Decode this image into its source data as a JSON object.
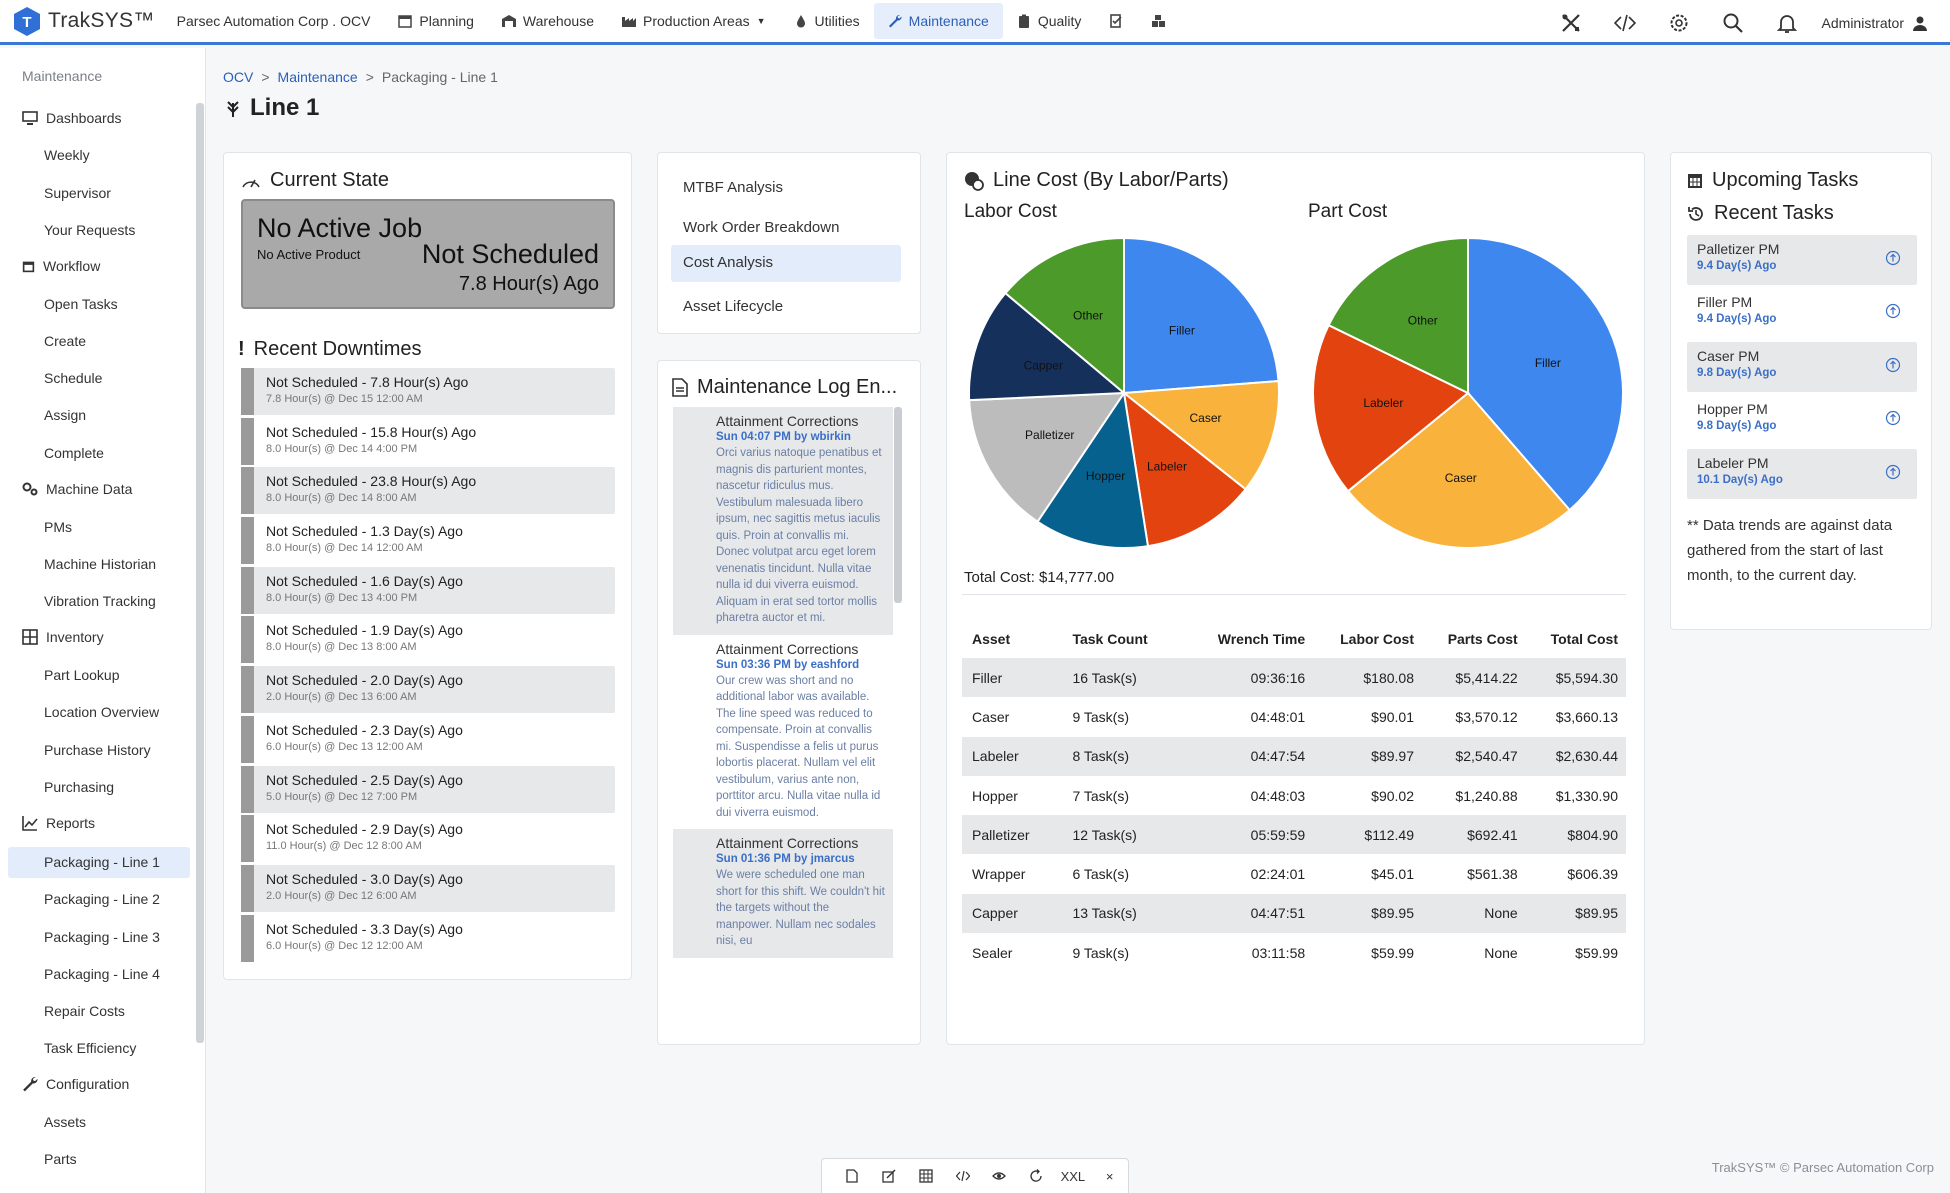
{
  "header": {
    "app_name": "TrakSYS™",
    "site": "Parsec Automation Corp . OCV",
    "nav": [
      {
        "label": "Planning",
        "icon": "calendar-icon"
      },
      {
        "label": "Warehouse",
        "icon": "warehouse-icon"
      },
      {
        "label": "Production Areas",
        "icon": "factory-icon"
      },
      {
        "label": "Utilities",
        "icon": "drop-icon"
      },
      {
        "label": "Maintenance",
        "icon": "wrench-icon"
      },
      {
        "label": "Quality",
        "icon": "clipboard-icon"
      }
    ],
    "user": "Administrator"
  },
  "sidebar": {
    "title": "Maintenance",
    "sections": [
      {
        "label": "Dashboards",
        "items": [
          "Weekly",
          "Supervisor",
          "Your Requests"
        ]
      },
      {
        "label": "Workflow",
        "items": [
          "Open Tasks",
          "Create",
          "Schedule",
          "Assign",
          "Complete"
        ]
      },
      {
        "label": "Machine Data",
        "items": [
          "PMs",
          "Machine Historian",
          "Vibration Tracking"
        ]
      },
      {
        "label": "Inventory",
        "items": [
          "Part Lookup",
          "Location Overview",
          "Purchase History",
          "Purchasing"
        ]
      },
      {
        "label": "Reports",
        "items": [
          "Packaging - Line 1",
          "Packaging - Line 2",
          "Packaging - Line 3",
          "Packaging - Line 4",
          "Repair Costs",
          "Task Efficiency"
        ]
      },
      {
        "label": "Configuration",
        "items": [
          "Assets",
          "Parts"
        ]
      }
    ]
  },
  "breadcrumb": {
    "c1": "OCV",
    "c2": "Maintenance",
    "c3": "Packaging - Line 1",
    "sep": ">"
  },
  "page_title": "Line 1",
  "current_state": {
    "title": "Current State",
    "job": "No Active Job",
    "product": "No Active Product",
    "status": "Not Scheduled",
    "ago": "7.8 Hour(s) Ago"
  },
  "downtimes": {
    "title": "Recent Downtimes",
    "rows": [
      {
        "main": "Not Scheduled - 7.8 Hour(s) Ago",
        "sub": "7.8 Hour(s) @ Dec 15 12:00 AM"
      },
      {
        "main": "Not Scheduled - 15.8 Hour(s) Ago",
        "sub": "8.0 Hour(s) @ Dec 14 4:00 PM"
      },
      {
        "main": "Not Scheduled - 23.8 Hour(s) Ago",
        "sub": "8.0 Hour(s) @ Dec 14 8:00 AM"
      },
      {
        "main": "Not Scheduled - 1.3 Day(s) Ago",
        "sub": "8.0 Hour(s) @ Dec 14 12:00 AM"
      },
      {
        "main": "Not Scheduled - 1.6 Day(s) Ago",
        "sub": "8.0 Hour(s) @ Dec 13 4:00 PM"
      },
      {
        "main": "Not Scheduled - 1.9 Day(s) Ago",
        "sub": "8.0 Hour(s) @ Dec 13 8:00 AM"
      },
      {
        "main": "Not Scheduled - 2.0 Day(s) Ago",
        "sub": "2.0 Hour(s) @ Dec 13 6:00 AM"
      },
      {
        "main": "Not Scheduled - 2.3 Day(s) Ago",
        "sub": "6.0 Hour(s) @ Dec 13 12:00 AM"
      },
      {
        "main": "Not Scheduled - 2.5 Day(s) Ago",
        "sub": "5.0 Hour(s) @ Dec 12 7:00 PM"
      },
      {
        "main": "Not Scheduled - 2.9 Day(s) Ago",
        "sub": "11.0 Hour(s) @ Dec 12 8:00 AM"
      },
      {
        "main": "Not Scheduled - 3.0 Day(s) Ago",
        "sub": "2.0 Hour(s) @ Dec 12 6:00 AM"
      },
      {
        "main": "Not Scheduled - 3.3 Day(s) Ago",
        "sub": "6.0 Hour(s) @ Dec 12 12:00 AM"
      }
    ]
  },
  "analysis_menu": [
    "MTBF Analysis",
    "Work Order Breakdown",
    "Cost Analysis",
    "Asset Lifecycle"
  ],
  "maintenance_log": {
    "title": "Maintenance Log En...",
    "entries": [
      {
        "title": "Attainment Corrections",
        "by": "Sun 04:07 PM by wbirkin",
        "body": "Orci varius natoque penatibus et magnis dis parturient montes, nascetur ridiculus mus. Vestibulum malesuada libero ipsum, nec sagittis metus iaculis quis. Proin at convallis mi. Donec volutpat arcu eget lorem venenatis tincidunt. Nulla vitae nulla id dui viverra euismod. Aliquam in erat sed tortor mollis pharetra auctor et mi."
      },
      {
        "title": "Attainment Corrections",
        "by": "Sun 03:36 PM by eashford",
        "body": "Our crew was short and no additional labor was available. The line speed was reduced to compensate. Proin at convallis mi. Suspendisse a felis ut purus lobortis placerat. Nullam vel elit vestibulum, varius ante non, porttitor arcu. Nulla vitae nulla id dui viverra euismod."
      },
      {
        "title": "Attainment Corrections",
        "by": "Sun 01:36 PM by jmarcus",
        "body": "We were scheduled one man short for this shift. We couldn't hit the targets without the manpower. Nullam nec sodales nisi, eu"
      }
    ]
  },
  "line_cost": {
    "title": "Line Cost (By Labor/Parts)",
    "total": "Total Cost: $14,777.00",
    "columns": [
      "Asset",
      "Task Count",
      "Wrench Time",
      "Labor Cost",
      "Parts Cost",
      "Total Cost"
    ],
    "rows": [
      [
        "Filler",
        "16 Task(s)",
        "09:36:16",
        "$180.08",
        "$5,414.22",
        "$5,594.30"
      ],
      [
        "Caser",
        "9 Task(s)",
        "04:48:01",
        "$90.01",
        "$3,570.12",
        "$3,660.13"
      ],
      [
        "Labeler",
        "8 Task(s)",
        "04:47:54",
        "$89.97",
        "$2,540.47",
        "$2,630.44"
      ],
      [
        "Hopper",
        "7 Task(s)",
        "04:48:03",
        "$90.02",
        "$1,240.88",
        "$1,330.90"
      ],
      [
        "Palletizer",
        "12 Task(s)",
        "05:59:59",
        "$112.49",
        "$692.41",
        "$804.90"
      ],
      [
        "Wrapper",
        "6 Task(s)",
        "02:24:01",
        "$45.01",
        "$561.38",
        "$606.39"
      ],
      [
        "Capper",
        "13 Task(s)",
        "04:47:51",
        "$89.95",
        "None",
        "$89.95"
      ],
      [
        "Sealer",
        "9 Task(s)",
        "03:11:58",
        "$59.99",
        "None",
        "$59.99"
      ]
    ]
  },
  "chart_data": [
    {
      "type": "pie",
      "title": "Labor Cost",
      "categories": [
        "Filler",
        "Caser",
        "Labeler",
        "Hopper",
        "Palletizer",
        "Capper",
        "Other"
      ],
      "values": [
        180.08,
        90.01,
        89.97,
        90.02,
        112.49,
        89.95,
        105.0
      ],
      "colors": [
        "#3d87ef",
        "#f9b23c",
        "#e3440f",
        "#06618f",
        "#bcbcbc",
        "#16305c",
        "#4b9a2a"
      ]
    },
    {
      "type": "pie",
      "title": "Part Cost",
      "categories": [
        "Filler",
        "Caser",
        "Labeler",
        "Other"
      ],
      "values": [
        5414.22,
        3570.12,
        2540.47,
        2494.67
      ],
      "colors": [
        "#3d87ef",
        "#f9b23c",
        "#e3440f",
        "#4b9a2a"
      ]
    }
  ],
  "tasks": {
    "upcoming_title": "Upcoming Tasks",
    "recent_title": "Recent Tasks",
    "items": [
      {
        "name": "Palletizer PM",
        "days": "9.4 Day(s) Ago"
      },
      {
        "name": "Filler PM",
        "days": "9.4 Day(s) Ago"
      },
      {
        "name": "Caser PM",
        "days": "9.8 Day(s) Ago"
      },
      {
        "name": "Hopper PM",
        "days": "9.8 Day(s) Ago"
      },
      {
        "name": "Labeler PM",
        "days": "10.1 Day(s) Ago"
      }
    ],
    "note": "** Data trends are against data gathered from the start of last month, to the current day."
  },
  "toolbar": {
    "size_label": "XXL",
    "close": "×"
  },
  "footer": "TrakSYS™ © Parsec Automation Corp"
}
